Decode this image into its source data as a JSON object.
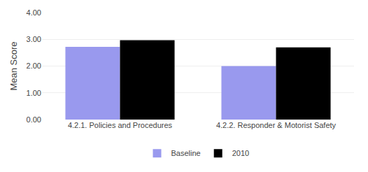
{
  "chart_data": {
    "type": "bar",
    "categories": [
      "4.2.1. Policies and Procedures",
      "4.2.2. Responder & Motorist Safety"
    ],
    "series": [
      {
        "name": "Baseline",
        "color": "#9999ee",
        "values": [
          2.72,
          2.0
        ]
      },
      {
        "name": "2010",
        "color": "#000000",
        "values": [
          2.97,
          2.7
        ]
      }
    ],
    "ylabel": "Mean Score",
    "ylim": [
      0,
      4.0
    ],
    "yticks": [
      {
        "value": 0,
        "label": "0.00"
      },
      {
        "value": 1,
        "label": "1.00"
      },
      {
        "value": 2,
        "label": "2.00"
      },
      {
        "value": 3,
        "label": "3.00"
      },
      {
        "value": 4,
        "label": "4.00"
      }
    ],
    "grid": true,
    "legend": "bottom"
  }
}
